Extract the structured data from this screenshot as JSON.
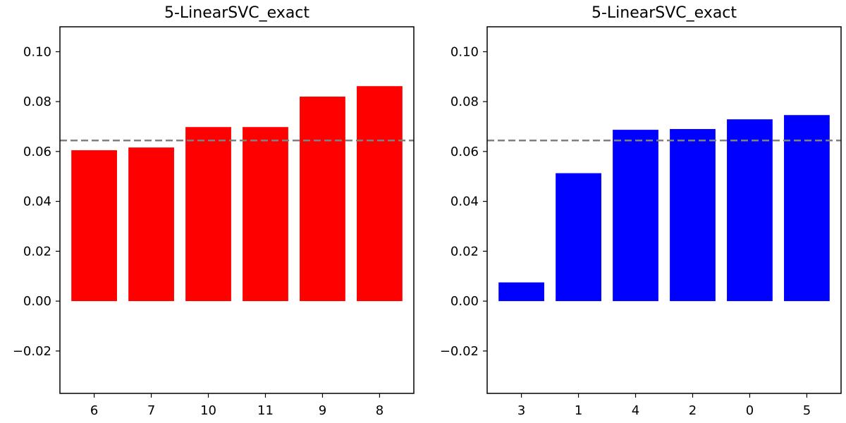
{
  "chart_data": [
    {
      "type": "bar",
      "title": "5-LinearSVC_exact",
      "categories": [
        "6",
        "7",
        "10",
        "11",
        "9",
        "8"
      ],
      "values": [
        0.0605,
        0.0616,
        0.0698,
        0.0698,
        0.082,
        0.0862
      ],
      "color": "#ff0000",
      "reference_line": 0.0644,
      "reference_color": "#808080",
      "ylim": [
        -0.037,
        0.11
      ],
      "yticks": [
        -0.02,
        0.0,
        0.02,
        0.04,
        0.06,
        0.08,
        0.1
      ],
      "ytick_labels": [
        "−0.02",
        "0.00",
        "0.02",
        "0.04",
        "0.06",
        "0.08",
        "0.10"
      ],
      "xlabel": "",
      "ylabel": ""
    },
    {
      "type": "bar",
      "title": "5-LinearSVC_exact",
      "categories": [
        "3",
        "1",
        "4",
        "2",
        "0",
        "5"
      ],
      "values": [
        0.0075,
        0.0513,
        0.0687,
        0.069,
        0.0729,
        0.0746
      ],
      "color": "#0000ff",
      "reference_line": 0.0644,
      "reference_color": "#808080",
      "ylim": [
        -0.037,
        0.11
      ],
      "yticks": [
        -0.02,
        0.0,
        0.02,
        0.04,
        0.06,
        0.08,
        0.1
      ],
      "ytick_labels": [
        "−0.02",
        "0.00",
        "0.02",
        "0.04",
        "0.06",
        "0.08",
        "0.10"
      ],
      "xlabel": "",
      "ylabel": ""
    }
  ]
}
